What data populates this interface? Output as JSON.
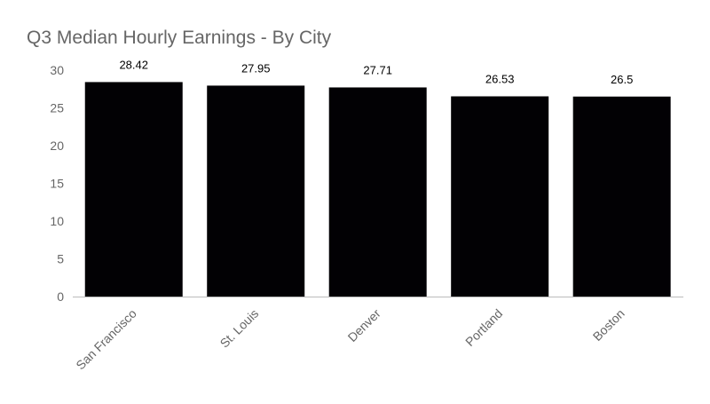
{
  "chart_data": {
    "type": "bar",
    "title": "Q3 Median Hourly Earnings - By City",
    "xlabel": "",
    "ylabel": "",
    "categories": [
      "San Francisco",
      "St. Louis",
      "Denver",
      "Portland",
      "Boston"
    ],
    "values": [
      28.42,
      27.95,
      27.71,
      26.53,
      26.5
    ],
    "data_labels": [
      "28.42",
      "27.95",
      "27.71",
      "26.53",
      "26.5"
    ],
    "ylim": [
      0,
      30
    ],
    "y_ticks": [
      0,
      5,
      10,
      15,
      20,
      25,
      30
    ],
    "y_tick_labels": [
      "0",
      "5",
      "10",
      "15",
      "20",
      "25",
      "30"
    ],
    "grid": false,
    "legend": "none",
    "colors": {
      "bar": "#020104",
      "axis": "#bbbbbb",
      "tick_text": "#666666",
      "title_text": "#666666",
      "data_label_text": "#000000"
    }
  }
}
